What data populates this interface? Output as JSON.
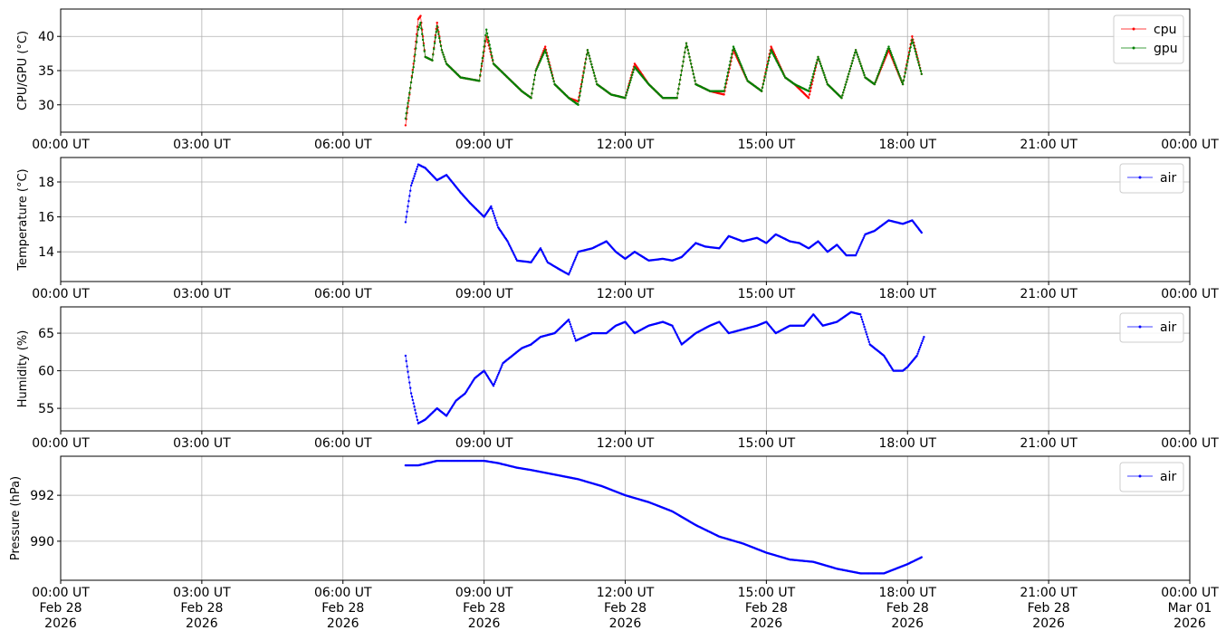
{
  "chart_data": [
    {
      "type": "line",
      "ylabel": "CPU/GPU (°C)",
      "xlim_hours": [
        0,
        24
      ],
      "ylim": [
        26,
        44
      ],
      "yticks": [
        30,
        35,
        40
      ],
      "grid": true,
      "legend_position": "top-right",
      "x_tick_labels": [
        "00:00 UT",
        "03:00 UT",
        "06:00 UT",
        "09:00 UT",
        "12:00 UT",
        "15:00 UT",
        "18:00 UT",
        "21:00 UT",
        "00:00 UT"
      ],
      "series": [
        {
          "name": "cpu",
          "color": "#ff0000",
          "x_hours": [
            7.33,
            7.5,
            7.6,
            7.65,
            7.75,
            7.9,
            8.0,
            8.1,
            8.2,
            8.5,
            8.9,
            9.05,
            9.2,
            9.5,
            9.8,
            10.0,
            10.1,
            10.3,
            10.5,
            10.8,
            11.0,
            11.2,
            11.4,
            11.7,
            12.0,
            12.2,
            12.5,
            12.8,
            13.1,
            13.3,
            13.5,
            13.8,
            14.1,
            14.3,
            14.6,
            14.9,
            15.1,
            15.4,
            15.6,
            15.9,
            16.1,
            16.3,
            16.6,
            16.9,
            17.1,
            17.3,
            17.6,
            17.9,
            18.1,
            18.3
          ],
          "y_values": [
            27,
            36,
            42.5,
            43,
            37,
            36.5,
            42,
            38,
            36,
            34,
            33.5,
            40,
            36,
            34,
            32,
            31,
            35,
            38.5,
            33,
            31,
            30.5,
            38,
            33,
            31.5,
            31,
            36,
            33,
            31,
            31,
            39,
            33,
            32,
            31.5,
            38,
            33.5,
            32,
            38.5,
            34,
            33,
            31,
            37,
            33,
            31,
            38,
            34,
            33,
            38,
            33,
            40,
            34.5
          ]
        },
        {
          "name": "gpu",
          "color": "#008000",
          "x_hours": [
            7.33,
            7.5,
            7.6,
            7.65,
            7.75,
            7.9,
            8.0,
            8.1,
            8.2,
            8.5,
            8.9,
            9.05,
            9.2,
            9.5,
            9.8,
            10.0,
            10.1,
            10.3,
            10.5,
            10.8,
            11.0,
            11.2,
            11.4,
            11.7,
            12.0,
            12.2,
            12.5,
            12.8,
            13.1,
            13.3,
            13.5,
            13.8,
            14.1,
            14.3,
            14.6,
            14.9,
            15.1,
            15.4,
            15.6,
            15.9,
            16.1,
            16.3,
            16.6,
            16.9,
            17.1,
            17.3,
            17.6,
            17.9,
            18.1,
            18.3
          ],
          "y_values": [
            28,
            35.5,
            41,
            42,
            37,
            36.5,
            41.5,
            38,
            36,
            34,
            33.5,
            41,
            36,
            34,
            32,
            31,
            35,
            38,
            33,
            31,
            30,
            38,
            33,
            31.5,
            31,
            35.5,
            33,
            31,
            31,
            39,
            33,
            32,
            32,
            38.5,
            33.5,
            32,
            38,
            34,
            33,
            32,
            37,
            33,
            31,
            38,
            34,
            33,
            38.5,
            33,
            39.5,
            34.5
          ]
        }
      ]
    },
    {
      "type": "line",
      "ylabel": "Temperature (°C)",
      "xlim_hours": [
        0,
        24
      ],
      "ylim": [
        12.3,
        19.4
      ],
      "yticks": [
        14,
        16,
        18
      ],
      "grid": true,
      "legend_position": "top-right",
      "x_tick_labels": [
        "00:00 UT",
        "03:00 UT",
        "06:00 UT",
        "09:00 UT",
        "12:00 UT",
        "15:00 UT",
        "18:00 UT",
        "21:00 UT",
        "00:00 UT"
      ],
      "series": [
        {
          "name": "air",
          "color": "#0000ff",
          "x_hours": [
            7.33,
            7.45,
            7.6,
            7.75,
            8.0,
            8.2,
            8.5,
            8.7,
            9.0,
            9.15,
            9.3,
            9.5,
            9.7,
            10.0,
            10.2,
            10.35,
            10.6,
            10.8,
            11.0,
            11.3,
            11.6,
            11.8,
            12.0,
            12.2,
            12.5,
            12.8,
            13.0,
            13.2,
            13.5,
            13.7,
            14.0,
            14.2,
            14.5,
            14.8,
            15.0,
            15.2,
            15.5,
            15.7,
            15.9,
            16.1,
            16.3,
            16.5,
            16.7,
            16.9,
            17.1,
            17.3,
            17.6,
            17.9,
            18.1,
            18.3
          ],
          "y_values": [
            15.7,
            17.8,
            19.0,
            18.8,
            18.1,
            18.4,
            17.4,
            16.8,
            16.0,
            16.6,
            15.4,
            14.6,
            13.5,
            13.4,
            14.2,
            13.4,
            13.0,
            12.7,
            14.0,
            14.2,
            14.6,
            14.0,
            13.6,
            14.0,
            13.5,
            13.6,
            13.5,
            13.7,
            14.5,
            14.3,
            14.2,
            14.9,
            14.6,
            14.8,
            14.5,
            15.0,
            14.6,
            14.5,
            14.2,
            14.6,
            14.0,
            14.4,
            13.8,
            13.8,
            15.0,
            15.2,
            15.8,
            15.6,
            15.8,
            15.1
          ]
        }
      ]
    },
    {
      "type": "line",
      "ylabel": "Humidity (%)",
      "xlim_hours": [
        0,
        24
      ],
      "ylim": [
        52,
        68.5
      ],
      "yticks": [
        55,
        60,
        65
      ],
      "grid": true,
      "legend_position": "top-right",
      "x_tick_labels": [
        "00:00 UT",
        "03:00 UT",
        "06:00 UT",
        "09:00 UT",
        "12:00 UT",
        "15:00 UT",
        "18:00 UT",
        "21:00 UT",
        "00:00 UT"
      ],
      "series": [
        {
          "name": "air",
          "color": "#0000ff",
          "x_hours": [
            7.33,
            7.45,
            7.6,
            7.75,
            8.0,
            8.2,
            8.4,
            8.6,
            8.8,
            9.0,
            9.2,
            9.4,
            9.6,
            9.8,
            10.0,
            10.2,
            10.5,
            10.8,
            10.95,
            11.3,
            11.6,
            11.8,
            12.0,
            12.2,
            12.5,
            12.8,
            13.0,
            13.2,
            13.5,
            13.8,
            14.0,
            14.2,
            14.5,
            14.8,
            15.0,
            15.2,
            15.5,
            15.8,
            16.0,
            16.2,
            16.5,
            16.8,
            17.0,
            17.2,
            17.5,
            17.7,
            17.9,
            18.0,
            18.2,
            18.35
          ],
          "y_values": [
            62,
            57,
            53,
            53.5,
            55,
            54,
            56,
            57,
            59,
            60,
            58,
            61,
            62,
            63,
            63.5,
            64.5,
            65,
            66.8,
            64,
            65,
            65,
            66,
            66.5,
            65,
            66,
            66.5,
            66,
            63.5,
            65,
            66,
            66.5,
            65,
            65.5,
            66,
            66.5,
            65,
            66,
            66,
            67.5,
            66,
            66.5,
            67.8,
            67.5,
            63.5,
            62,
            60,
            60,
            60.5,
            62,
            64.5
          ]
        }
      ]
    },
    {
      "type": "line",
      "ylabel": "Pressure (hPa)",
      "xlim_hours": [
        0,
        24
      ],
      "ylim": [
        988.3,
        993.7
      ],
      "yticks": [
        990,
        992
      ],
      "grid": true,
      "legend_position": "top-right",
      "x_tick_labels": [
        "00:00 UT\nFeb 28\n2026",
        "03:00 UT\nFeb 28\n2026",
        "06:00 UT\nFeb 28\n2026",
        "09:00 UT\nFeb 28\n2026",
        "12:00 UT\nFeb 28\n2026",
        "15:00 UT\nFeb 28\n2026",
        "18:00 UT\nFeb 28\n2026",
        "21:00 UT\nFeb 28\n2026",
        "00:00 UT\nMar 01\n2026"
      ],
      "series": [
        {
          "name": "air",
          "color": "#0000ff",
          "x_hours": [
            7.33,
            7.6,
            8.0,
            8.5,
            9.0,
            9.3,
            9.7,
            10.0,
            10.5,
            11.0,
            11.5,
            12.0,
            12.5,
            13.0,
            13.5,
            14.0,
            14.5,
            15.0,
            15.5,
            16.0,
            16.5,
            17.0,
            17.5,
            18.0,
            18.3
          ],
          "y_values": [
            993.3,
            993.3,
            993.5,
            993.5,
            993.5,
            993.4,
            993.2,
            993.1,
            992.9,
            992.7,
            992.4,
            992.0,
            991.7,
            991.3,
            990.7,
            990.2,
            989.9,
            989.5,
            989.2,
            989.1,
            988.8,
            988.6,
            988.6,
            989.0,
            989.3
          ]
        }
      ]
    }
  ]
}
